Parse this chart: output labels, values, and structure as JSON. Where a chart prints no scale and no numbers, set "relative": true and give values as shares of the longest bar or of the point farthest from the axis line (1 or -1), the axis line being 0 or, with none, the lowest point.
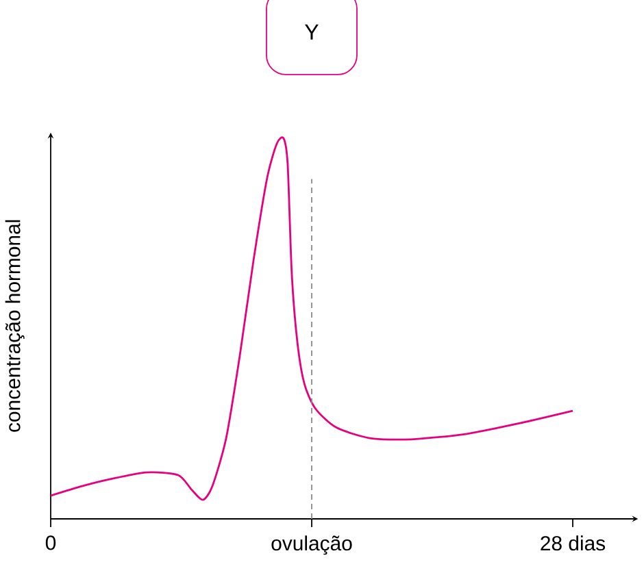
{
  "chart_data": {
    "type": "line",
    "title": "Y",
    "ylabel": "concentração hormonal",
    "relative": true,
    "x": [
      0,
      1.69,
      3.16,
      5.14,
      6.83,
      7.57,
      8.16,
      8.67,
      9.41,
      10.14,
      10.88,
      11.61,
      12.13,
      12.49,
      12.71,
      12.93,
      13.23,
      13.6,
      14.18,
      15.29,
      17.12,
      19.33,
      22.27,
      25.21,
      28
    ],
    "series": [
      {
        "color": "#e6007e",
        "values": [
          0.061,
          0.086,
          0.104,
          0.122,
          0.115,
          0.076,
          0.05,
          0.086,
          0.212,
          0.428,
          0.68,
          0.896,
          0.986,
          1.0,
          0.932,
          0.644,
          0.464,
          0.356,
          0.291,
          0.241,
          0.212,
          0.209,
          0.223,
          0.252,
          0.284
        ]
      }
    ],
    "xlim": [
      0,
      31.5
    ],
    "xticks": [
      0,
      {
        "value": 14,
        "label": "ovulação"
      },
      {
        "value": 28,
        "label": "28 dias"
      }
    ],
    "ref_lines": [
      {
        "axis": "x",
        "value": 14,
        "color": "#888888",
        "line_style": "dashed"
      }
    ]
  }
}
